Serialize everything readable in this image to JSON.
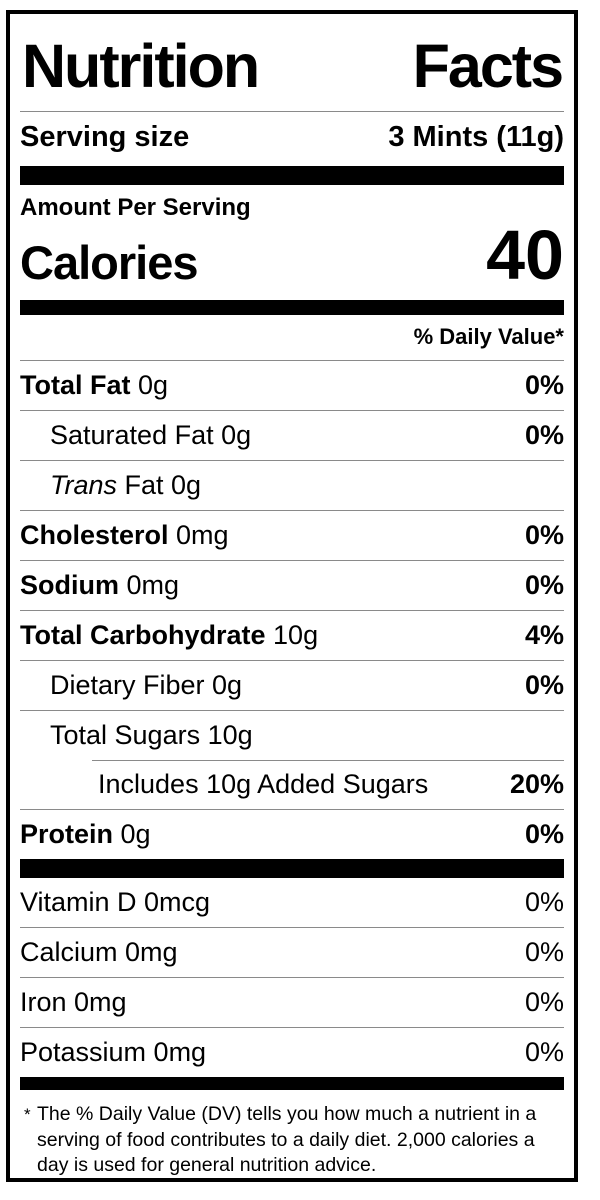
{
  "nutrition_label": {
    "title_word_1": "Nutrition",
    "title_word_2": "Facts",
    "serving_size_label": "Serving size",
    "serving_size_value": "3 Mints (11g)",
    "amount_per_serving": "Amount Per Serving",
    "calories_label": "Calories",
    "calories_value": "40",
    "daily_value_header": "% Daily Value*",
    "rows": [
      {
        "prefix": "",
        "strong": "Total Fat",
        "text": " 0g",
        "dv": "0%"
      },
      {
        "prefix": "",
        "strong": "",
        "text": "Saturated Fat 0g",
        "dv": "0%"
      },
      {
        "prefix": "Trans",
        "strong": "",
        "text": " Fat 0g",
        "dv": ""
      },
      {
        "prefix": "",
        "strong": "Cholesterol",
        "text": " 0mg",
        "dv": "0%"
      },
      {
        "prefix": "",
        "strong": "Sodium",
        "text": " 0mg",
        "dv": "0%"
      },
      {
        "prefix": "",
        "strong": "Total Carbohydrate",
        "text": " 10g",
        "dv": "4%"
      },
      {
        "prefix": "",
        "strong": "",
        "text": "Dietary Fiber 0g",
        "dv": "0%"
      },
      {
        "prefix": "",
        "strong": "",
        "text": "Total Sugars 10g",
        "dv": ""
      },
      {
        "prefix": "",
        "strong": "",
        "text": "Includes 10g Added Sugars",
        "dv": "20%"
      },
      {
        "prefix": "",
        "strong": "Protein",
        "text": " 0g",
        "dv": "0%"
      }
    ],
    "micronutrients": [
      {
        "text": "Vitamin D 0mcg",
        "dv": "0%"
      },
      {
        "text": "Calcium 0mg",
        "dv": "0%"
      },
      {
        "text": "Iron 0mg",
        "dv": "0%"
      },
      {
        "text": "Potassium 0mg",
        "dv": "0%"
      }
    ],
    "footnote_marker": "*",
    "footnote": "The % Daily Value (DV) tells you how much a nutrient in a serving of food contributes to a daily diet. 2,000 calories a day is used for general nutrition advice."
  },
  "colors": {
    "text": "#000000",
    "background": "#ffffff",
    "hairline": "#8a8a8a"
  }
}
